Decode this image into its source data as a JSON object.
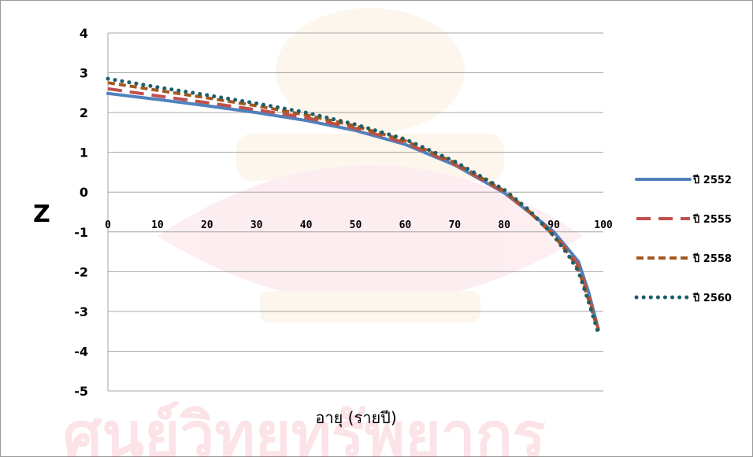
{
  "chart_data": {
    "type": "line",
    "title": "",
    "xlabel": "อายุ (รายปี)",
    "ylabel": "Z",
    "xlim": [
      0,
      100
    ],
    "ylim": [
      -5,
      4
    ],
    "x_ticks": [
      0,
      10,
      20,
      30,
      40,
      50,
      60,
      70,
      80,
      90,
      100
    ],
    "y_ticks": [
      4,
      3,
      2,
      1,
      0,
      -1,
      -2,
      -3,
      -4,
      -5
    ],
    "grid": "horizontal",
    "legend_position": "right",
    "series": [
      {
        "name": "ปี 2552",
        "style": "solid",
        "color": "#4f81bd",
        "x": [
          0,
          10,
          20,
          30,
          40,
          50,
          60,
          70,
          80,
          85,
          90,
          93,
          95,
          97,
          99
        ],
        "y": [
          2.48,
          2.33,
          2.17,
          2.0,
          1.8,
          1.55,
          1.2,
          0.68,
          -0.02,
          -0.5,
          -1.0,
          -1.45,
          -1.75,
          -2.5,
          -3.45
        ]
      },
      {
        "name": "ปี 2555",
        "style": "dash",
        "color": "#c0504d",
        "x": [
          0,
          10,
          20,
          30,
          40,
          50,
          60,
          70,
          80,
          85,
          90,
          93,
          95,
          97,
          99
        ],
        "y": [
          2.6,
          2.42,
          2.25,
          2.07,
          1.87,
          1.6,
          1.24,
          0.7,
          0.0,
          -0.5,
          -1.05,
          -1.5,
          -1.85,
          -2.6,
          -3.45
        ]
      },
      {
        "name": "ปี 2558",
        "style": "short-dash",
        "color": "#a5581f",
        "x": [
          0,
          10,
          20,
          30,
          40,
          50,
          60,
          70,
          80,
          85,
          90,
          93,
          95,
          97,
          99
        ],
        "y": [
          2.75,
          2.56,
          2.37,
          2.17,
          1.94,
          1.66,
          1.29,
          0.74,
          0.03,
          -0.48,
          -1.1,
          -1.55,
          -1.95,
          -2.7,
          -3.5
        ]
      },
      {
        "name": "ปี 2560",
        "style": "dot",
        "color": "#1f5f6b",
        "x": [
          0,
          10,
          20,
          30,
          40,
          50,
          60,
          70,
          80,
          85,
          90,
          93,
          95,
          97,
          99
        ],
        "y": [
          2.85,
          2.64,
          2.44,
          2.23,
          2.0,
          1.7,
          1.33,
          0.77,
          0.06,
          -0.45,
          -1.1,
          -1.6,
          -2.0,
          -2.75,
          -3.55
        ]
      }
    ]
  }
}
